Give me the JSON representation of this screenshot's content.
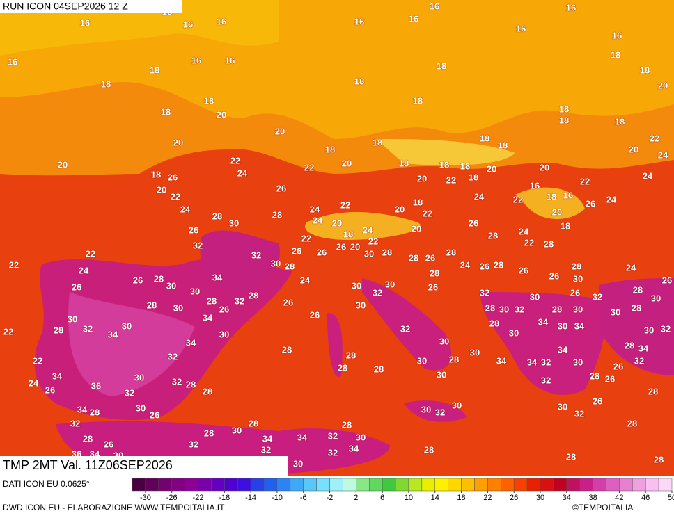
{
  "header": {
    "run": "RUN ICON 04SEP2026 12 Z"
  },
  "map": {
    "title": "TMP 2MT Val. 11Z06SEP2026",
    "labels": [
      16,
      16,
      16,
      16,
      16,
      18,
      16,
      16,
      18,
      18,
      18,
      20,
      20,
      20,
      20,
      18,
      26,
      20,
      22,
      22,
      24,
      26,
      22,
      20,
      18,
      18,
      18,
      18,
      18,
      18,
      18,
      20,
      20,
      20,
      22,
      18,
      16,
      18,
      16,
      22,
      20,
      22,
      24,
      24,
      24,
      26,
      20,
      18,
      22,
      24,
      20,
      18,
      22,
      20,
      26,
      28,
      24,
      22,
      28,
      16,
      16,
      16,
      16,
      16,
      16,
      18,
      18,
      20,
      18,
      18,
      18,
      18,
      18,
      18,
      22,
      24,
      24,
      20,
      18,
      24,
      22,
      20,
      26,
      26,
      26,
      22,
      28,
      28,
      30,
      26,
      32,
      24,
      32,
      30,
      28,
      24,
      22,
      24,
      22,
      26,
      26,
      28,
      30,
      30,
      34,
      28,
      26,
      32,
      28,
      26,
      26,
      28,
      30,
      28,
      26,
      28,
      28,
      24,
      26,
      28,
      26,
      28,
      26,
      30,
      26,
      32,
      28,
      30,
      26,
      24,
      30,
      28,
      30,
      32,
      30,
      26,
      32,
      28,
      30,
      32,
      30,
      28,
      30,
      34,
      30,
      34,
      30,
      28,
      30,
      32,
      30,
      30,
      28,
      30,
      28,
      28,
      28,
      30,
      28,
      30,
      28,
      34,
      30,
      34,
      32,
      34,
      30,
      32,
      28,
      30,
      22,
      22,
      34,
      26,
      24,
      36,
      32,
      30,
      32,
      28,
      28,
      34,
      28,
      30,
      26,
      32,
      28,
      26,
      36,
      34,
      30,
      32,
      28,
      30,
      28,
      34,
      32,
      34,
      32,
      30,
      28,
      34,
      32,
      30,
      28,
      30,
      32,
      30,
      34,
      34,
      32,
      34,
      30,
      32,
      28,
      26,
      26,
      28,
      32,
      34,
      30,
      32,
      28,
      26,
      30,
      32,
      28,
      28,
      28
    ]
  },
  "legend": {
    "source": "DATI ICON EU 0.0625°",
    "credit": "DWD ICON EU - ELABORAZIONE WWW.TEMPOITALIA.IT",
    "logo": "©TEMPOITALIA",
    "range": [
      -32,
      50
    ],
    "ticks": [
      -30,
      -26,
      -22,
      -18,
      -14,
      -10,
      -6,
      -2,
      2,
      6,
      10,
      14,
      18,
      22,
      26,
      30,
      34,
      38,
      42,
      46,
      50
    ],
    "colors": [
      "#4a0040",
      "#60005a",
      "#72006e",
      "#820084",
      "#8c0096",
      "#7a00aa",
      "#6400c0",
      "#5000d0",
      "#3c10e0",
      "#2840e8",
      "#2060f0",
      "#2c84f4",
      "#40a8f8",
      "#58c8fa",
      "#78e0fc",
      "#a0f0f8",
      "#c0f8e0",
      "#88e888",
      "#60d860",
      "#40c840",
      "#80d830",
      "#b8e820",
      "#e8f000",
      "#fff000",
      "#ffd800",
      "#ffbe00",
      "#ffa000",
      "#ff8000",
      "#ff6000",
      "#f84000",
      "#e82000",
      "#d81010",
      "#c00020",
      "#c01060",
      "#c82088",
      "#d040a8",
      "#dc60c0",
      "#e880d0",
      "#f0a0e0",
      "#f8c0f0",
      "#fcd8f8"
    ]
  }
}
